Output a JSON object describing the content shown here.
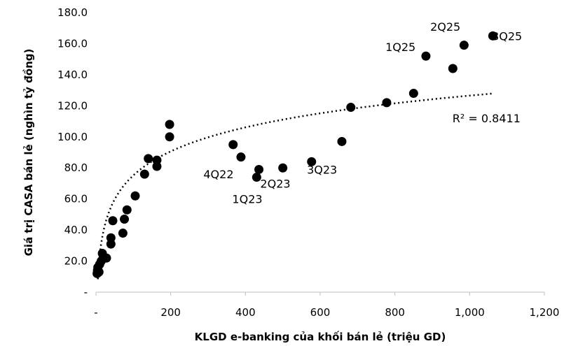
{
  "chart_data": {
    "type": "scatter",
    "title": "",
    "xlabel": "KLGD e-banking của khối bán lẻ (triệu GD)",
    "ylabel": "Giá trị CASA bán lẻ (nghìn tỷ đồng)",
    "xlim": [
      0,
      1200
    ],
    "ylim": [
      0,
      180
    ],
    "x_ticks": [
      0,
      200,
      400,
      600,
      800,
      1000,
      1200
    ],
    "x_tick_labels": [
      "-",
      "200",
      "400",
      "600",
      "800",
      "1,000",
      "1,200"
    ],
    "y_ticks": [
      0,
      20,
      40,
      60,
      80,
      100,
      120,
      140,
      160,
      180
    ],
    "y_tick_labels": [
      "-",
      "20.0",
      "40.0",
      "60.0",
      "80.0",
      "100.0",
      "120.0",
      "140.0",
      "160.0",
      "180.0"
    ],
    "grid": false,
    "legend": "none",
    "marker_color": "#000000",
    "points": [
      {
        "x": 3,
        "y": 12
      },
      {
        "x": 4,
        "y": 14
      },
      {
        "x": 5,
        "y": 16
      },
      {
        "x": 8,
        "y": 13
      },
      {
        "x": 10,
        "y": 18
      },
      {
        "x": 14,
        "y": 20
      },
      {
        "x": 17,
        "y": 25
      },
      {
        "x": 20,
        "y": 23
      },
      {
        "x": 28,
        "y": 22
      },
      {
        "x": 40,
        "y": 31
      },
      {
        "x": 40,
        "y": 35
      },
      {
        "x": 45,
        "y": 46
      },
      {
        "x": 72,
        "y": 38
      },
      {
        "x": 76,
        "y": 47
      },
      {
        "x": 83,
        "y": 53
      },
      {
        "x": 105,
        "y": 62
      },
      {
        "x": 130,
        "y": 76
      },
      {
        "x": 140,
        "y": 86
      },
      {
        "x": 163,
        "y": 81
      },
      {
        "x": 163,
        "y": 85
      },
      {
        "x": 197,
        "y": 100
      },
      {
        "x": 197,
        "y": 108
      },
      {
        "x": 367,
        "y": 95
      },
      {
        "x": 388,
        "y": 87
      },
      {
        "x": 430,
        "y": 74
      },
      {
        "x": 436,
        "y": 79
      },
      {
        "x": 500,
        "y": 80
      },
      {
        "x": 577,
        "y": 84
      },
      {
        "x": 658,
        "y": 97
      },
      {
        "x": 682,
        "y": 119
      },
      {
        "x": 778,
        "y": 122
      },
      {
        "x": 850,
        "y": 128
      },
      {
        "x": 883,
        "y": 152
      },
      {
        "x": 955,
        "y": 144
      },
      {
        "x": 985,
        "y": 159
      },
      {
        "x": 1062,
        "y": 165
      }
    ],
    "annotations": [
      {
        "text": "4Q22",
        "x": 328,
        "y": 76
      },
      {
        "text": "1Q23",
        "x": 405,
        "y": 60
      },
      {
        "text": "2Q23",
        "x": 480,
        "y": 70
      },
      {
        "text": "3Q23",
        "x": 605,
        "y": 79
      },
      {
        "text": "1Q25",
        "x": 815,
        "y": 158
      },
      {
        "text": "2Q25",
        "x": 935,
        "y": 171
      },
      {
        "text": "3Q25",
        "x": 1100,
        "y": 165
      },
      {
        "text": "R² = 0.8411",
        "x": 1045,
        "y": 112
      }
    ],
    "trendline": {
      "type": "logarithmic",
      "style": "dotted",
      "r_squared": "0.8411",
      "a": 22.3,
      "b": -27.5,
      "x_range": [
        5,
        1060
      ]
    }
  }
}
